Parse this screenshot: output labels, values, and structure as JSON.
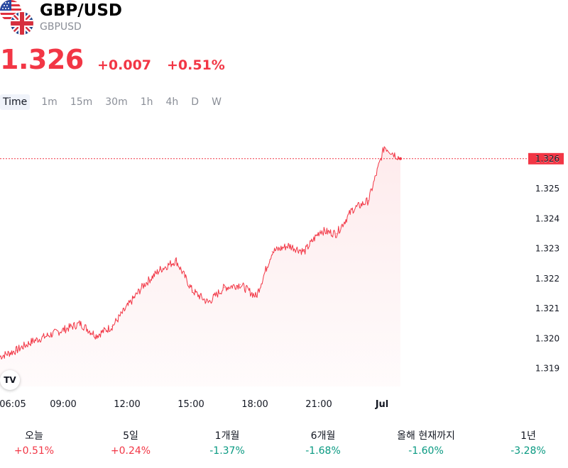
{
  "header": {
    "symbol_name": "GBP/USD",
    "ticker": "GBPUSD",
    "price": "1.326",
    "change_abs": "+0.007",
    "change_pct": "+0.51%"
  },
  "colors": {
    "up": "#f23645",
    "down": "#089981",
    "line": "#f23645"
  },
  "timeframes": [
    {
      "label": "Time",
      "active": true
    },
    {
      "label": "1m"
    },
    {
      "label": "15m"
    },
    {
      "label": "30m"
    },
    {
      "label": "1h"
    },
    {
      "label": "4h"
    },
    {
      "label": "D"
    },
    {
      "label": "W"
    }
  ],
  "chart_data": {
    "type": "line",
    "series": [
      {
        "x": [
          "06:05",
          "07:00",
          "08:00",
          "09:00",
          "10:00",
          "11:00",
          "12:00",
          "13:00",
          "14:00",
          "14:40",
          "15:00",
          "15:30",
          "16:00",
          "17:00",
          "18:00",
          "18:30",
          "19:00",
          "20:00",
          "20:40",
          "21:00",
          "22:00",
          "22:40",
          "23:00",
          "23:30",
          "00:00",
          "00:40"
        ],
        "values": [
          1.3194,
          1.3196,
          1.3199,
          1.3201,
          1.3203,
          1.3205,
          1.3201,
          1.3204,
          1.3211,
          1.3218,
          1.3223,
          1.3226,
          1.3216,
          1.3212,
          1.3217,
          1.3218,
          1.3214,
          1.3229,
          1.3231,
          1.3229,
          1.3236,
          1.3235,
          1.3243,
          1.3246,
          1.3264,
          1.326
        ]
      }
    ],
    "x_ticks": [
      "06:05",
      "09:00",
      "12:00",
      "15:00",
      "18:00",
      "21:00",
      "Jul"
    ],
    "y_ticks": [
      "1.326",
      "1.325",
      "1.324",
      "1.323",
      "1.322",
      "1.321",
      "1.320",
      "1.319"
    ],
    "ylim": [
      1.3184,
      1.3268
    ],
    "last_price_label": "1.326",
    "grid": false
  },
  "performance": [
    {
      "label": "오늘",
      "value": "+0.51%",
      "dir": "up"
    },
    {
      "label": "5일",
      "value": "+0.24%",
      "dir": "up"
    },
    {
      "label": "1개월",
      "value": "-1.37%",
      "dir": "down"
    },
    {
      "label": "6개월",
      "value": "-1.68%",
      "dir": "down"
    },
    {
      "label": "올해 현재까지",
      "value": "-1.60%",
      "dir": "down"
    },
    {
      "label": "1년",
      "value": "-3.28%",
      "dir": "down"
    }
  ]
}
